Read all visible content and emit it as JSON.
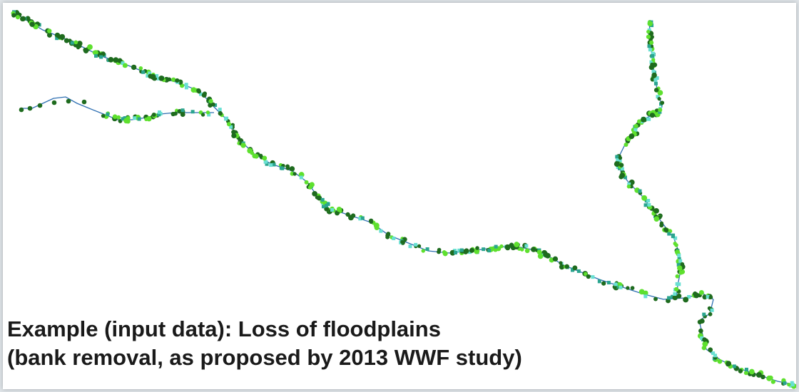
{
  "caption": {
    "line1": "Example (input data): Loss of floodplains",
    "line2": "(bank removal, as proposed by 2013 WWF study)"
  },
  "colors": {
    "river": "#2e6fb2",
    "dark_green": "#1e6b1e",
    "light_green": "#5ee02e",
    "teal": "#2aa58f",
    "cyan": "#68e0d2"
  }
}
